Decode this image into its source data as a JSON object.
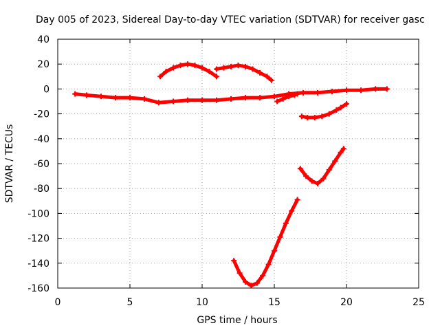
{
  "chart_data": {
    "type": "line",
    "title": "Day 005 of 2023, Sidereal Day-to-day VTEC variation (SDTVAR) for receiver gasc",
    "xlabel": "GPS time / hours",
    "ylabel": "SDTVAR / TECUs",
    "xlim": [
      0,
      25
    ],
    "ylim": [
      -160,
      40
    ],
    "xticks": [
      0,
      5,
      10,
      15,
      20,
      25
    ],
    "yticks": [
      -160,
      -140,
      -120,
      -100,
      -80,
      -60,
      -40,
      -20,
      0,
      20,
      40
    ],
    "grid": true,
    "legend": "none",
    "colors": {
      "series": "#ff0000",
      "grid": "#a0a0a0",
      "axis": "#000000"
    },
    "series": [
      {
        "x": [
          1.2,
          2.0,
          3.0,
          4.0,
          5.0,
          6.0,
          7.0,
          8.0,
          9.0,
          10.0,
          11.0,
          12.0,
          13.0,
          14.0,
          15.0,
          16.0,
          17.0,
          18.0,
          19.0,
          20.0,
          21.0,
          22.0,
          22.8
        ],
        "y": [
          -4,
          -5,
          -6,
          -7,
          -7,
          -8,
          -11,
          -10,
          -9,
          -9,
          -9,
          -8,
          -7,
          -7,
          -6,
          -4,
          -3,
          -3,
          -2,
          -1,
          -1,
          0,
          0
        ]
      },
      {
        "x": [
          7.1,
          7.5,
          8.0,
          8.5,
          9.0,
          9.5,
          10.0,
          10.5,
          11.0
        ],
        "y": [
          10,
          14,
          17,
          19,
          20,
          19,
          17,
          14,
          10
        ]
      },
      {
        "x": [
          11.0,
          11.5,
          12.0,
          12.5,
          13.0,
          13.5,
          14.0,
          14.5,
          14.8
        ],
        "y": [
          16,
          17,
          18,
          19,
          18,
          16,
          13,
          10,
          7
        ]
      },
      {
        "x": [
          15.2,
          15.6,
          16.0,
          16.4,
          16.6
        ],
        "y": [
          -10,
          -8,
          -6,
          -5,
          -4
        ]
      },
      {
        "x": [
          16.9,
          17.3,
          17.8,
          18.3,
          18.8,
          19.3,
          19.6,
          20.0
        ],
        "y": [
          -22,
          -23,
          -23,
          -22,
          -20,
          -17,
          -15,
          -12
        ]
      },
      {
        "x": [
          16.8,
          17.2,
          17.6,
          18.0,
          18.4,
          18.8,
          19.2,
          19.6,
          19.8
        ],
        "y": [
          -64,
          -70,
          -74,
          -76,
          -72,
          -65,
          -58,
          -51,
          -48
        ]
      },
      {
        "x": [
          12.2,
          12.6,
          13.0,
          13.4,
          13.8,
          14.2,
          14.6,
          15.0,
          15.4,
          15.8,
          16.2,
          16.6
        ],
        "y": [
          -138,
          -148,
          -155,
          -158,
          -156,
          -150,
          -141,
          -130,
          -119,
          -108,
          -98,
          -89
        ]
      }
    ]
  }
}
